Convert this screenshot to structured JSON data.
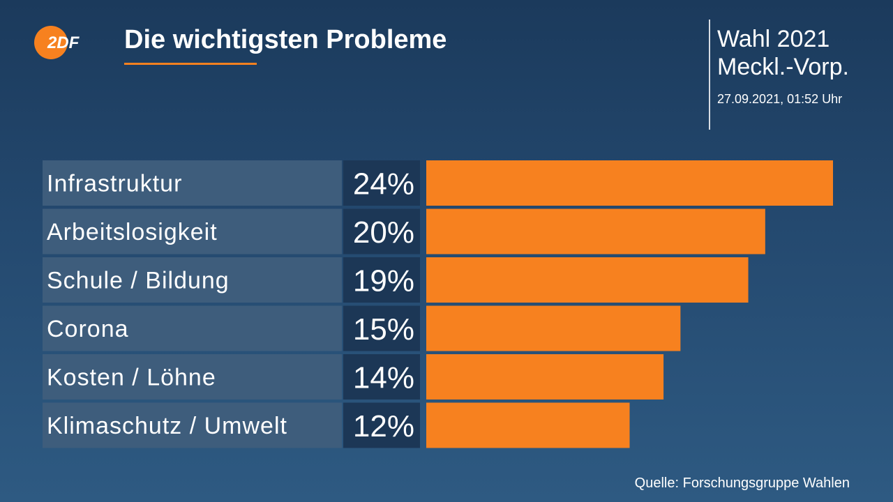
{
  "header": {
    "logo_text": "2DF",
    "title": "Die wichtigsten Probleme",
    "election_line1": "Wahl 2021",
    "election_line2": "Meckl.-Vorp.",
    "timestamp": "27.09.2021, 01:52 Uhr"
  },
  "footer": {
    "source": "Quelle: Forschungsgruppe Wahlen"
  },
  "colors": {
    "accent": "#f7811f",
    "label_bg": "#3e5d7c",
    "value_bg": "#1c3756",
    "logo": "#f7811f"
  },
  "chart_data": {
    "type": "bar",
    "orientation": "horizontal",
    "title": "Die wichtigsten Probleme",
    "categories": [
      "Infrastruktur",
      "Arbeitslosigkeit",
      "Schule / Bildung",
      "Corona",
      "Kosten / Löhne",
      "Klimaschutz / Umwelt"
    ],
    "values": [
      24,
      20,
      19,
      15,
      14,
      12
    ],
    "value_labels": [
      "24%",
      "20%",
      "19%",
      "15%",
      "14%",
      "12%"
    ],
    "unit": "%",
    "xlim": [
      0,
      24
    ],
    "grid": false,
    "legend": "none"
  }
}
